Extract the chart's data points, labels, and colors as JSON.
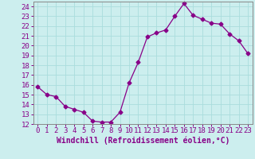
{
  "x": [
    0,
    1,
    2,
    3,
    4,
    5,
    6,
    7,
    8,
    9,
    10,
    11,
    12,
    13,
    14,
    15,
    16,
    17,
    18,
    19,
    20,
    21,
    22,
    23
  ],
  "y": [
    15.8,
    15.0,
    14.8,
    13.8,
    13.5,
    13.2,
    12.3,
    12.2,
    12.2,
    13.2,
    16.2,
    18.3,
    20.9,
    21.3,
    21.6,
    23.0,
    24.3,
    23.1,
    22.7,
    22.3,
    22.2,
    21.2,
    20.5,
    19.2
  ],
  "line_color": "#880088",
  "marker": "D",
  "marker_size": 2.5,
  "bg_color": "#cceeee",
  "grid_color": "#aadddd",
  "xlabel": "Windchill (Refroidissement éolien,°C)",
  "xlabel_color": "#880088",
  "tick_color": "#880088",
  "ylim": [
    12,
    24.5
  ],
  "xlim": [
    -0.5,
    23.5
  ],
  "yticks": [
    12,
    13,
    14,
    15,
    16,
    17,
    18,
    19,
    20,
    21,
    22,
    23,
    24
  ],
  "xticks": [
    0,
    1,
    2,
    3,
    4,
    5,
    6,
    7,
    8,
    9,
    10,
    11,
    12,
    13,
    14,
    15,
    16,
    17,
    18,
    19,
    20,
    21,
    22,
    23
  ],
  "tick_fontsize": 6.5,
  "xlabel_fontsize": 7,
  "spine_color": "#888888"
}
